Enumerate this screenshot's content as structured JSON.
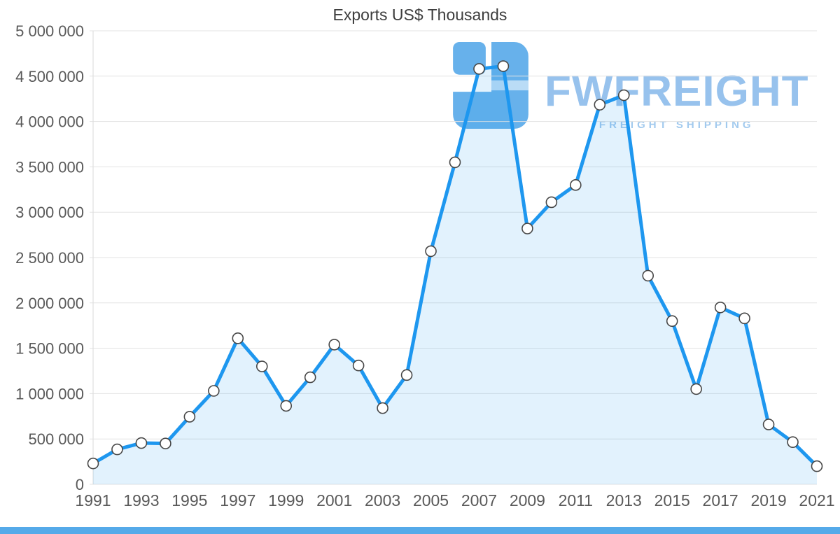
{
  "watermark": {
    "brand": "FWFREIGHT",
    "tagline": "FREIGHT SHIPPING"
  },
  "chart_data": {
    "type": "area",
    "title": "Exports US$ Thousands",
    "xlabel": "",
    "ylabel": "",
    "legend": "none",
    "grid": "horizontal",
    "x": [
      1991,
      1992,
      1993,
      1994,
      1995,
      1996,
      1997,
      1998,
      1999,
      2000,
      2001,
      2002,
      2003,
      2004,
      2005,
      2006,
      2007,
      2008,
      2009,
      2010,
      2011,
      2012,
      2013,
      2014,
      2015,
      2016,
      2017,
      2018,
      2019,
      2020,
      2021
    ],
    "values": [
      230000,
      385000,
      455000,
      450000,
      745000,
      1030000,
      1610000,
      1300000,
      865000,
      1180000,
      1540000,
      1310000,
      840000,
      1205000,
      2570000,
      3550000,
      4580000,
      4610000,
      2820000,
      3110000,
      3300000,
      4185000,
      4290000,
      2300000,
      1800000,
      1050000,
      1950000,
      1830000,
      660000,
      465000,
      200000
    ],
    "x_tick_labels": [
      "1991",
      "1993",
      "1995",
      "1997",
      "1999",
      "2001",
      "2003",
      "2005",
      "2007",
      "2009",
      "2011",
      "2013",
      "2015",
      "2017",
      "2019",
      "2021"
    ],
    "x_tick_every": 2,
    "y_ticks": [
      "0",
      "500 000",
      "1 000 000",
      "1 500 000",
      "2 000 000",
      "2 500 000",
      "3 000 000",
      "3 500 000",
      "4 000 000",
      "4 500 000",
      "5 000 000"
    ],
    "y_step": 500000,
    "ylim": [
      0,
      5000000
    ],
    "colors": {
      "line": "#1e97ef",
      "area": "rgba(30,151,239,0.13)",
      "marker_fill": "#ffffff",
      "marker_stroke": "#474747",
      "grid": "#e3e3e3",
      "axis_text": "#595959",
      "watermark": "#86b8ea",
      "logo": "#4da4e8",
      "bottom_bar": "#55aae9"
    }
  }
}
